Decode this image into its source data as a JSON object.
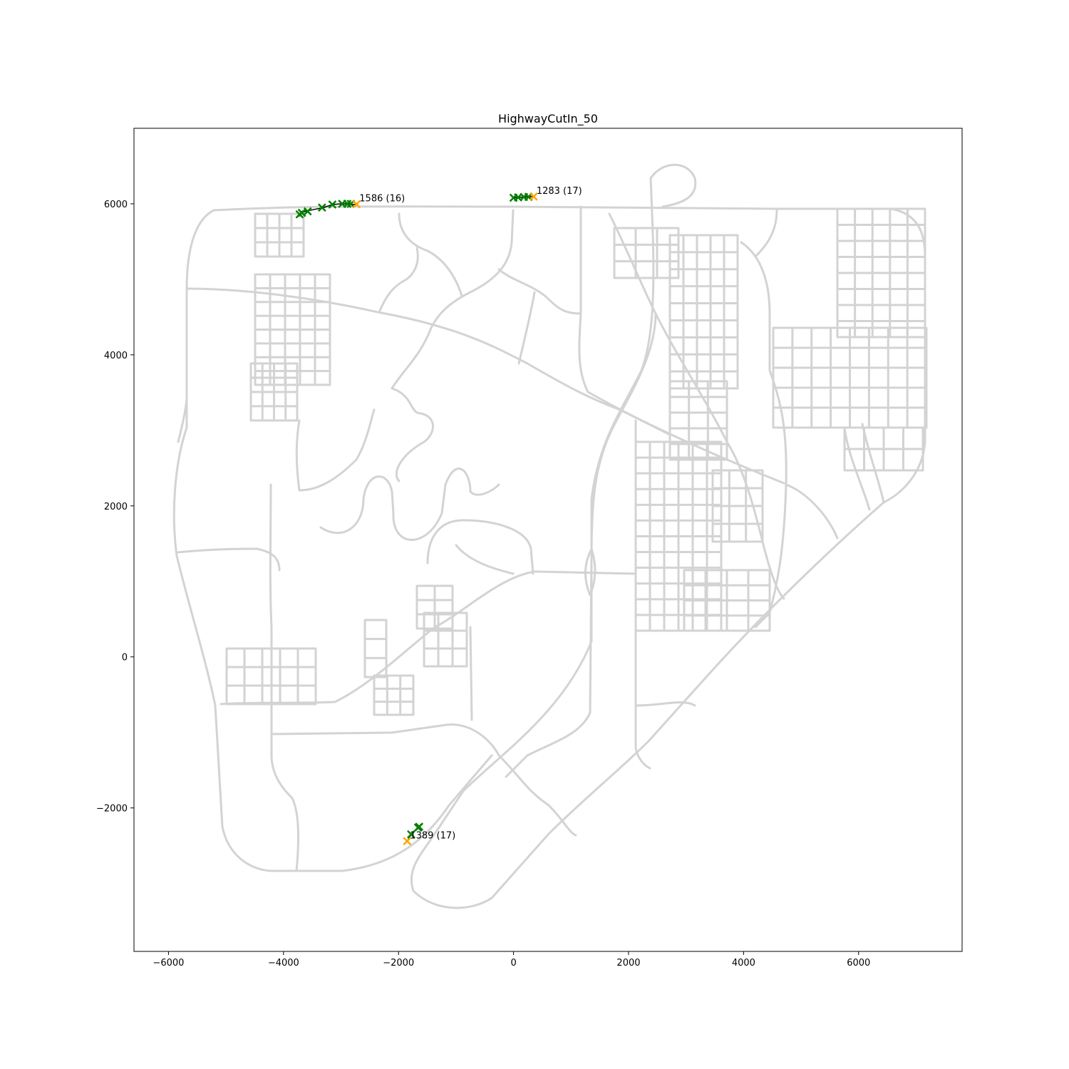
{
  "chart_data": {
    "type": "scatter",
    "title": "HighwayCutIn_50",
    "xlabel": "",
    "ylabel": "",
    "xlim": [
      -6600,
      7800
    ],
    "ylim": [
      -3900,
      7000
    ],
    "x_ticks": [
      -6000,
      -4000,
      -2000,
      0,
      2000,
      4000,
      6000
    ],
    "y_ticks": [
      -2000,
      0,
      2000,
      4000,
      6000
    ],
    "x_tick_labels": [
      "−6000",
      "−4000",
      "−2000",
      "0",
      "2000",
      "4000",
      "6000"
    ],
    "y_tick_labels": [
      "−2000",
      "0",
      "2000",
      "4000",
      "6000"
    ],
    "grid": false,
    "colors": {
      "road": "#d3d3d3",
      "marker_green": "#008000",
      "marker_orange": "#ffa500",
      "path": "#000000"
    },
    "trajectories": [
      {
        "label": "1586 (16)",
        "path": [
          [
            -3720,
            5870
          ],
          [
            -3620,
            5900
          ],
          [
            -3500,
            5920
          ],
          [
            -3300,
            5950
          ],
          [
            -3150,
            5990
          ],
          [
            -3000,
            6000
          ],
          [
            -2900,
            6000
          ],
          [
            -2750,
            5990
          ]
        ],
        "green_markers": [
          [
            -3720,
            5860
          ],
          [
            -3680,
            5880
          ],
          [
            -3580,
            5900
          ],
          [
            -3330,
            5950
          ],
          [
            -3150,
            5990
          ],
          [
            -2980,
            6000
          ],
          [
            -2890,
            6000
          ],
          [
            -2830,
            6000
          ]
        ],
        "orange_markers": [
          [
            -2730,
            5995
          ]
        ]
      },
      {
        "label": "1283 (17)",
        "path": [
          [
            0,
            6080
          ],
          [
            100,
            6085
          ],
          [
            200,
            6090
          ],
          [
            340,
            6095
          ]
        ],
        "green_markers": [
          [
            0,
            6080
          ],
          [
            80,
            6085
          ],
          [
            180,
            6090
          ],
          [
            260,
            6092
          ]
        ],
        "orange_markers": [
          [
            350,
            6095
          ]
        ]
      },
      {
        "label": "1389 (17)",
        "path": [
          [
            -1850,
            -2440
          ],
          [
            -1760,
            -2330
          ],
          [
            -1650,
            -2250
          ]
        ],
        "green_markers": [
          [
            -1660,
            -2260
          ],
          [
            -1640,
            -2250
          ],
          [
            -1780,
            -2350
          ]
        ],
        "orange_markers": [
          [
            -1850,
            -2440
          ]
        ]
      }
    ]
  }
}
